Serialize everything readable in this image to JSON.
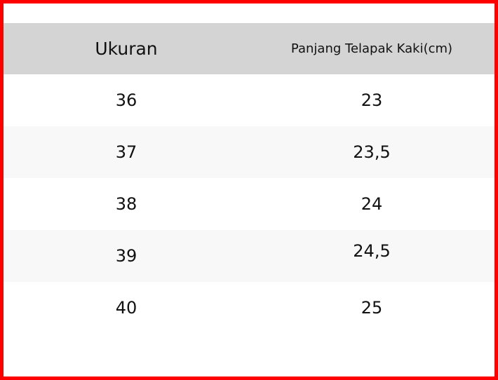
{
  "table": {
    "headers": [
      "Ukuran",
      "Panjang Telapak Kaki(cm)"
    ],
    "rows": [
      [
        "36",
        "23"
      ],
      [
        "37",
        "23,5"
      ],
      [
        "38",
        "24"
      ],
      [
        "39",
        "24,5"
      ],
      [
        "40",
        "25"
      ]
    ]
  },
  "colors": {
    "border": "#ff0000",
    "header_bg": "#d4d4d4",
    "alt_row_bg": "#f8f8f8"
  }
}
